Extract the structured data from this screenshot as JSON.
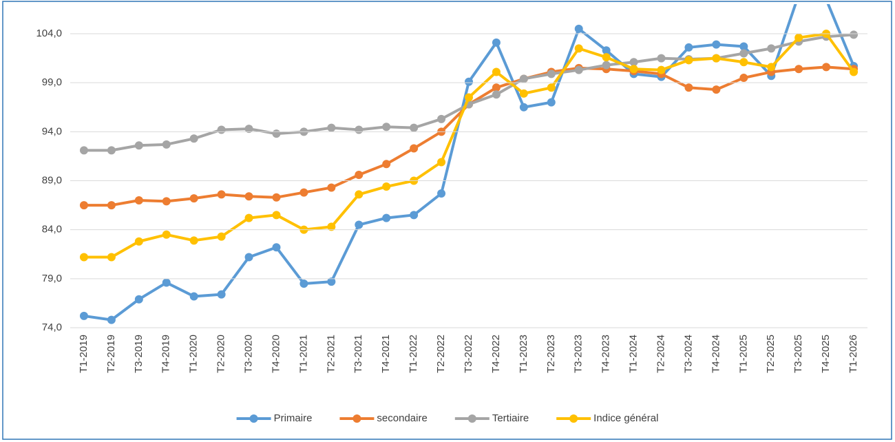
{
  "chart_data": {
    "type": "line",
    "categories": [
      "T1-2019",
      "T2-2019",
      "T3-2019",
      "T4-2019",
      "T1-2020",
      "T2-2020",
      "T3-2020",
      "T4-2020",
      "T1-2021",
      "T2-2021",
      "T3-2021",
      "T4-2021",
      "T1-2022",
      "T2-2022",
      "T3-2022",
      "T4-2022",
      "T1-2023",
      "T2-2023",
      "T3-2023",
      "T4-2023",
      "T1-2024",
      "T2-2024",
      "T3-2024",
      "T4-2024",
      "T1-2025",
      "T2-2025",
      "T3-2025",
      "T4-2025",
      "T1-2026"
    ],
    "series": [
      {
        "name": "Primaire",
        "color": "#5b9bd5",
        "values": [
          75.2,
          74.8,
          76.9,
          78.6,
          77.2,
          77.4,
          81.2,
          82.2,
          78.5,
          78.7,
          84.5,
          85.2,
          85.5,
          87.7,
          99.1,
          103.1,
          96.5,
          97.0,
          104.5,
          102.3,
          99.9,
          99.6,
          102.6,
          102.9,
          102.7,
          99.7,
          108,
          107.5,
          100.7
        ]
      },
      {
        "name": "secondaire",
        "color": "#ed7d31",
        "values": [
          86.5,
          86.5,
          87.0,
          86.9,
          87.2,
          87.6,
          87.4,
          87.3,
          87.8,
          88.3,
          89.6,
          90.7,
          92.3,
          94.0,
          96.8,
          98.5,
          99.4,
          100.1,
          100.5,
          100.4,
          100.2,
          99.9,
          98.5,
          98.3,
          99.5,
          100.1,
          100.4,
          100.6,
          100.4
        ]
      },
      {
        "name": "Tertiaire",
        "color": "#a5a5a5",
        "values": [
          92.1,
          92.1,
          92.6,
          92.7,
          93.3,
          94.2,
          94.3,
          93.8,
          94.0,
          94.4,
          94.2,
          94.5,
          94.4,
          95.3,
          96.8,
          97.8,
          99.4,
          99.9,
          100.3,
          100.8,
          101.1,
          101.5,
          101.4,
          101.5,
          102.0,
          102.5,
          103.2,
          103.7,
          103.9
        ]
      },
      {
        "name": "Indice général",
        "color": "#ffc000",
        "values": [
          81.2,
          81.2,
          82.8,
          83.5,
          82.9,
          83.3,
          85.2,
          85.5,
          84.0,
          84.3,
          87.6,
          88.4,
          89.0,
          90.9,
          97.5,
          100.1,
          97.9,
          98.5,
          102.5,
          101.6,
          100.4,
          100.3,
          101.3,
          101.5,
          101.1,
          100.6,
          103.6,
          104.0,
          100.1
        ]
      }
    ],
    "ylim": [
      74,
      107
    ],
    "yticks": [
      {
        "value": 74,
        "label": "74,0"
      },
      {
        "value": 79,
        "label": "79,0"
      },
      {
        "value": 84,
        "label": "84,0"
      },
      {
        "value": 89,
        "label": "89,0"
      },
      {
        "value": 94,
        "label": "94,0"
      },
      {
        "value": 99,
        "label": "99,0"
      },
      {
        "value": 104,
        "label": "104,0"
      }
    ],
    "grid": true,
    "legend": "bottom"
  }
}
